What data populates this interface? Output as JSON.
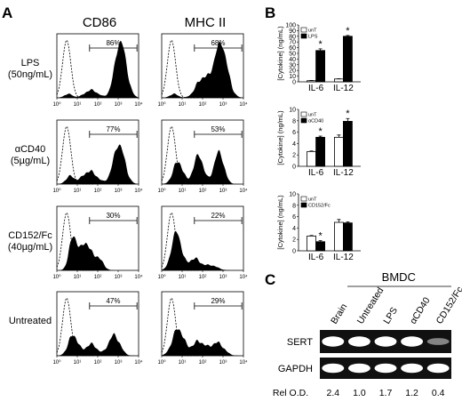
{
  "panel_a": {
    "label": "A",
    "columns": [
      "CD86",
      "MHC II"
    ],
    "rows": [
      {
        "condition": "LPS",
        "dose": "(50ng/mL)",
        "percents": [
          "86%",
          "68%"
        ]
      },
      {
        "condition": "αCD40",
        "dose": "(5µg/mL)",
        "percents": [
          "77%",
          "53%"
        ]
      },
      {
        "condition": "CD152/Fc",
        "dose": "(40µg/mL)",
        "percents": [
          "30%",
          "22%"
        ]
      },
      {
        "condition": "Untreated",
        "dose": "",
        "percents": [
          "47%",
          "29%"
        ]
      }
    ],
    "axis_ticks": [
      "10⁰",
      "10¹",
      "10²",
      "10³",
      "10⁴"
    ]
  },
  "panel_b": {
    "label": "B",
    "ylabel_top": "[Cytokine] (ng/mL)",
    "ylabel_other": "[Cytokine] (ng/mL)",
    "categories": [
      "IL-6",
      "IL-12"
    ],
    "star": "*"
  },
  "panel_c": {
    "label": "C",
    "group_label": "BMDC",
    "lanes": [
      "Brain",
      "Untreated",
      "LPS",
      "αCD40",
      "CD152/Fc"
    ],
    "row_labels": [
      "SERT",
      "GAPDH"
    ],
    "rel_label": "Rel O.D.",
    "rel_values": [
      "2.4",
      "1.0",
      "1.7",
      "1.2",
      "0.4"
    ],
    "sert_intensity": [
      1.0,
      1.0,
      1.0,
      1.0,
      0.35
    ],
    "gapdh_intensity": [
      1.0,
      1.0,
      1.0,
      1.0,
      1.0
    ]
  },
  "chart_data": [
    {
      "type": "bar",
      "categories": [
        "IL-6",
        "IL-12"
      ],
      "series": [
        {
          "name": "unT",
          "values": [
            2,
            5
          ]
        },
        {
          "name": "LPS",
          "values": [
            55,
            80
          ]
        }
      ],
      "errors": [
        [
          0.5,
          0.5
        ],
        [
          3,
          1.5
        ]
      ],
      "significant": [
        false,
        false,
        true,
        true
      ],
      "ylim": [
        0,
        100
      ],
      "yticks": [
        0,
        10,
        20,
        30,
        40,
        50,
        60,
        70,
        80,
        90,
        100
      ],
      "ylabel": "[Cytokine] (ng/mL)"
    },
    {
      "type": "bar",
      "categories": [
        "IL-6",
        "IL-12"
      ],
      "series": [
        {
          "name": "unT",
          "values": [
            2.6,
            5.1
          ]
        },
        {
          "name": "αCD40",
          "values": [
            5.1,
            7.9
          ]
        }
      ],
      "errors": [
        [
          0.1,
          0.4
        ],
        [
          0.2,
          0.5
        ]
      ],
      "significant": [
        false,
        false,
        true,
        true
      ],
      "ylim": [
        0,
        10
      ],
      "yticks": [
        0,
        2,
        4,
        6,
        8,
        10
      ],
      "ylabel": "[Cytokine] (ng/mL)"
    },
    {
      "type": "bar",
      "categories": [
        "IL-6",
        "IL-12"
      ],
      "series": [
        {
          "name": "unT",
          "values": [
            2.6,
            5.0
          ]
        },
        {
          "name": "CD152/Fc",
          "values": [
            1.6,
            4.9
          ]
        }
      ],
      "errors": [
        [
          0.1,
          0.5
        ],
        [
          0.2,
          0.2
        ]
      ],
      "significant": [
        false,
        false,
        true,
        false
      ],
      "ylim": [
        0,
        10
      ],
      "yticks": [
        0,
        2,
        4,
        6,
        8,
        10
      ],
      "ylabel": "[Cytokine] (ng/mL)"
    }
  ]
}
